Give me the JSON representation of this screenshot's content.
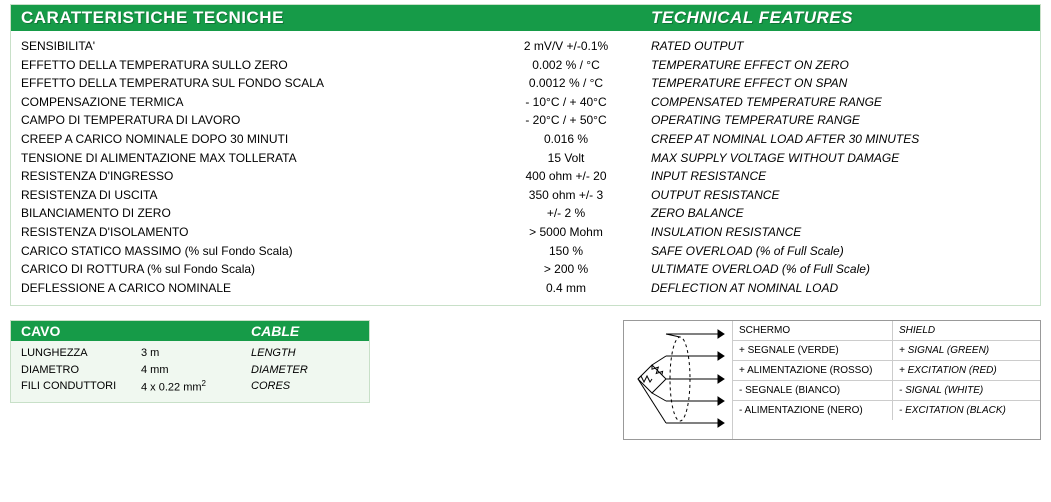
{
  "colors": {
    "header_bg": "#169b48",
    "header_text": "#ffffff",
    "panel_border": "#c8e0c8",
    "panel_bg": "#f0f8f0",
    "body_bg": "#ffffff",
    "text": "#000000",
    "wiring_border": "#999999",
    "wiring_cell_border": "#cccccc"
  },
  "main": {
    "title_it": "CARATTERISTICHE TECNICHE",
    "title_en": "TECHNICAL FEATURES",
    "rows": [
      {
        "it": "SENSIBILITA'",
        "val": "2 mV/V  +/-0.1%",
        "en": "RATED OUTPUT"
      },
      {
        "it": "EFFETTO DELLA TEMPERATURA SULLO ZERO",
        "val": "0.002 % / °C",
        "en": "TEMPERATURE EFFECT ON ZERO"
      },
      {
        "it": "EFFETTO DELLA TEMPERATURA SUL FONDO SCALA",
        "val": "0.0012 % / °C",
        "en": "TEMPERATURE EFFECT ON SPAN"
      },
      {
        "it": "COMPENSAZIONE TERMICA",
        "val": "- 10°C / + 40°C",
        "en": "COMPENSATED TEMPERATURE RANGE"
      },
      {
        "it": "CAMPO DI TEMPERATURA DI LAVORO",
        "val": "- 20°C / + 50°C",
        "en": "OPERATING TEMPERATURE RANGE"
      },
      {
        "it": "CREEP A CARICO NOMINALE DOPO 30 MINUTI",
        "val": "0.016 %",
        "en": "CREEP AT NOMINAL LOAD AFTER 30 MINUTES"
      },
      {
        "it": "TENSIONE DI ALIMENTAZIONE MAX TOLLERATA",
        "val": "15 Volt",
        "en": "MAX SUPPLY VOLTAGE WITHOUT DAMAGE"
      },
      {
        "it": "RESISTENZA D'INGRESSO",
        "val": "400 ohm +/- 20",
        "en": "INPUT RESISTANCE"
      },
      {
        "it": "RESISTENZA DI USCITA",
        "val": "350 ohm +/- 3",
        "en": "OUTPUT RESISTANCE"
      },
      {
        "it": "BILANCIAMENTO DI ZERO",
        "val": "+/- 2 %",
        "en": "ZERO BALANCE"
      },
      {
        "it": "RESISTENZA D'ISOLAMENTO",
        "val": "> 5000 Mohm",
        "en": "INSULATION RESISTANCE"
      },
      {
        "it": "CARICO STATICO MASSIMO (% sul Fondo Scala)",
        "val": "150 %",
        "en": "SAFE OVERLOAD (% of  Full Scale)"
      },
      {
        "it": "CARICO DI ROTTURA (% sul Fondo Scala)",
        "val": "> 200 %",
        "en": "ULTIMATE OVERLOAD (% of  Full Scale)"
      },
      {
        "it": "DEFLESSIONE A CARICO NOMINALE",
        "val": "0.4 mm",
        "en": "DEFLECTION AT NOMINAL LOAD"
      }
    ]
  },
  "cable": {
    "title_it": "CAVO",
    "title_en": "CABLE",
    "rows": [
      {
        "it": "LUNGHEZZA",
        "val": "3 m",
        "en": "LENGTH"
      },
      {
        "it": "DIAMETRO",
        "val": "4 mm",
        "en": "DIAMETER"
      },
      {
        "it": "FILI CONDUTTORI",
        "val": "4 x 0.22 mm²",
        "en": "CORES"
      }
    ]
  },
  "wiring": {
    "rows": [
      {
        "it": "SCHERMO",
        "en": "SHIELD"
      },
      {
        "it": "+ SEGNALE (VERDE)",
        "en": "+ SIGNAL (GREEN)"
      },
      {
        "it": "+ ALIMENTAZIONE (ROSSO)",
        "en": "+ EXCITATION (RED)"
      },
      {
        "it": "- SEGNALE (BIANCO)",
        "en": "- SIGNAL (WHITE)"
      },
      {
        "it": "- ALIMENTAZIONE (NERO)",
        "en": "- EXCITATION (BLACK)"
      }
    ]
  }
}
